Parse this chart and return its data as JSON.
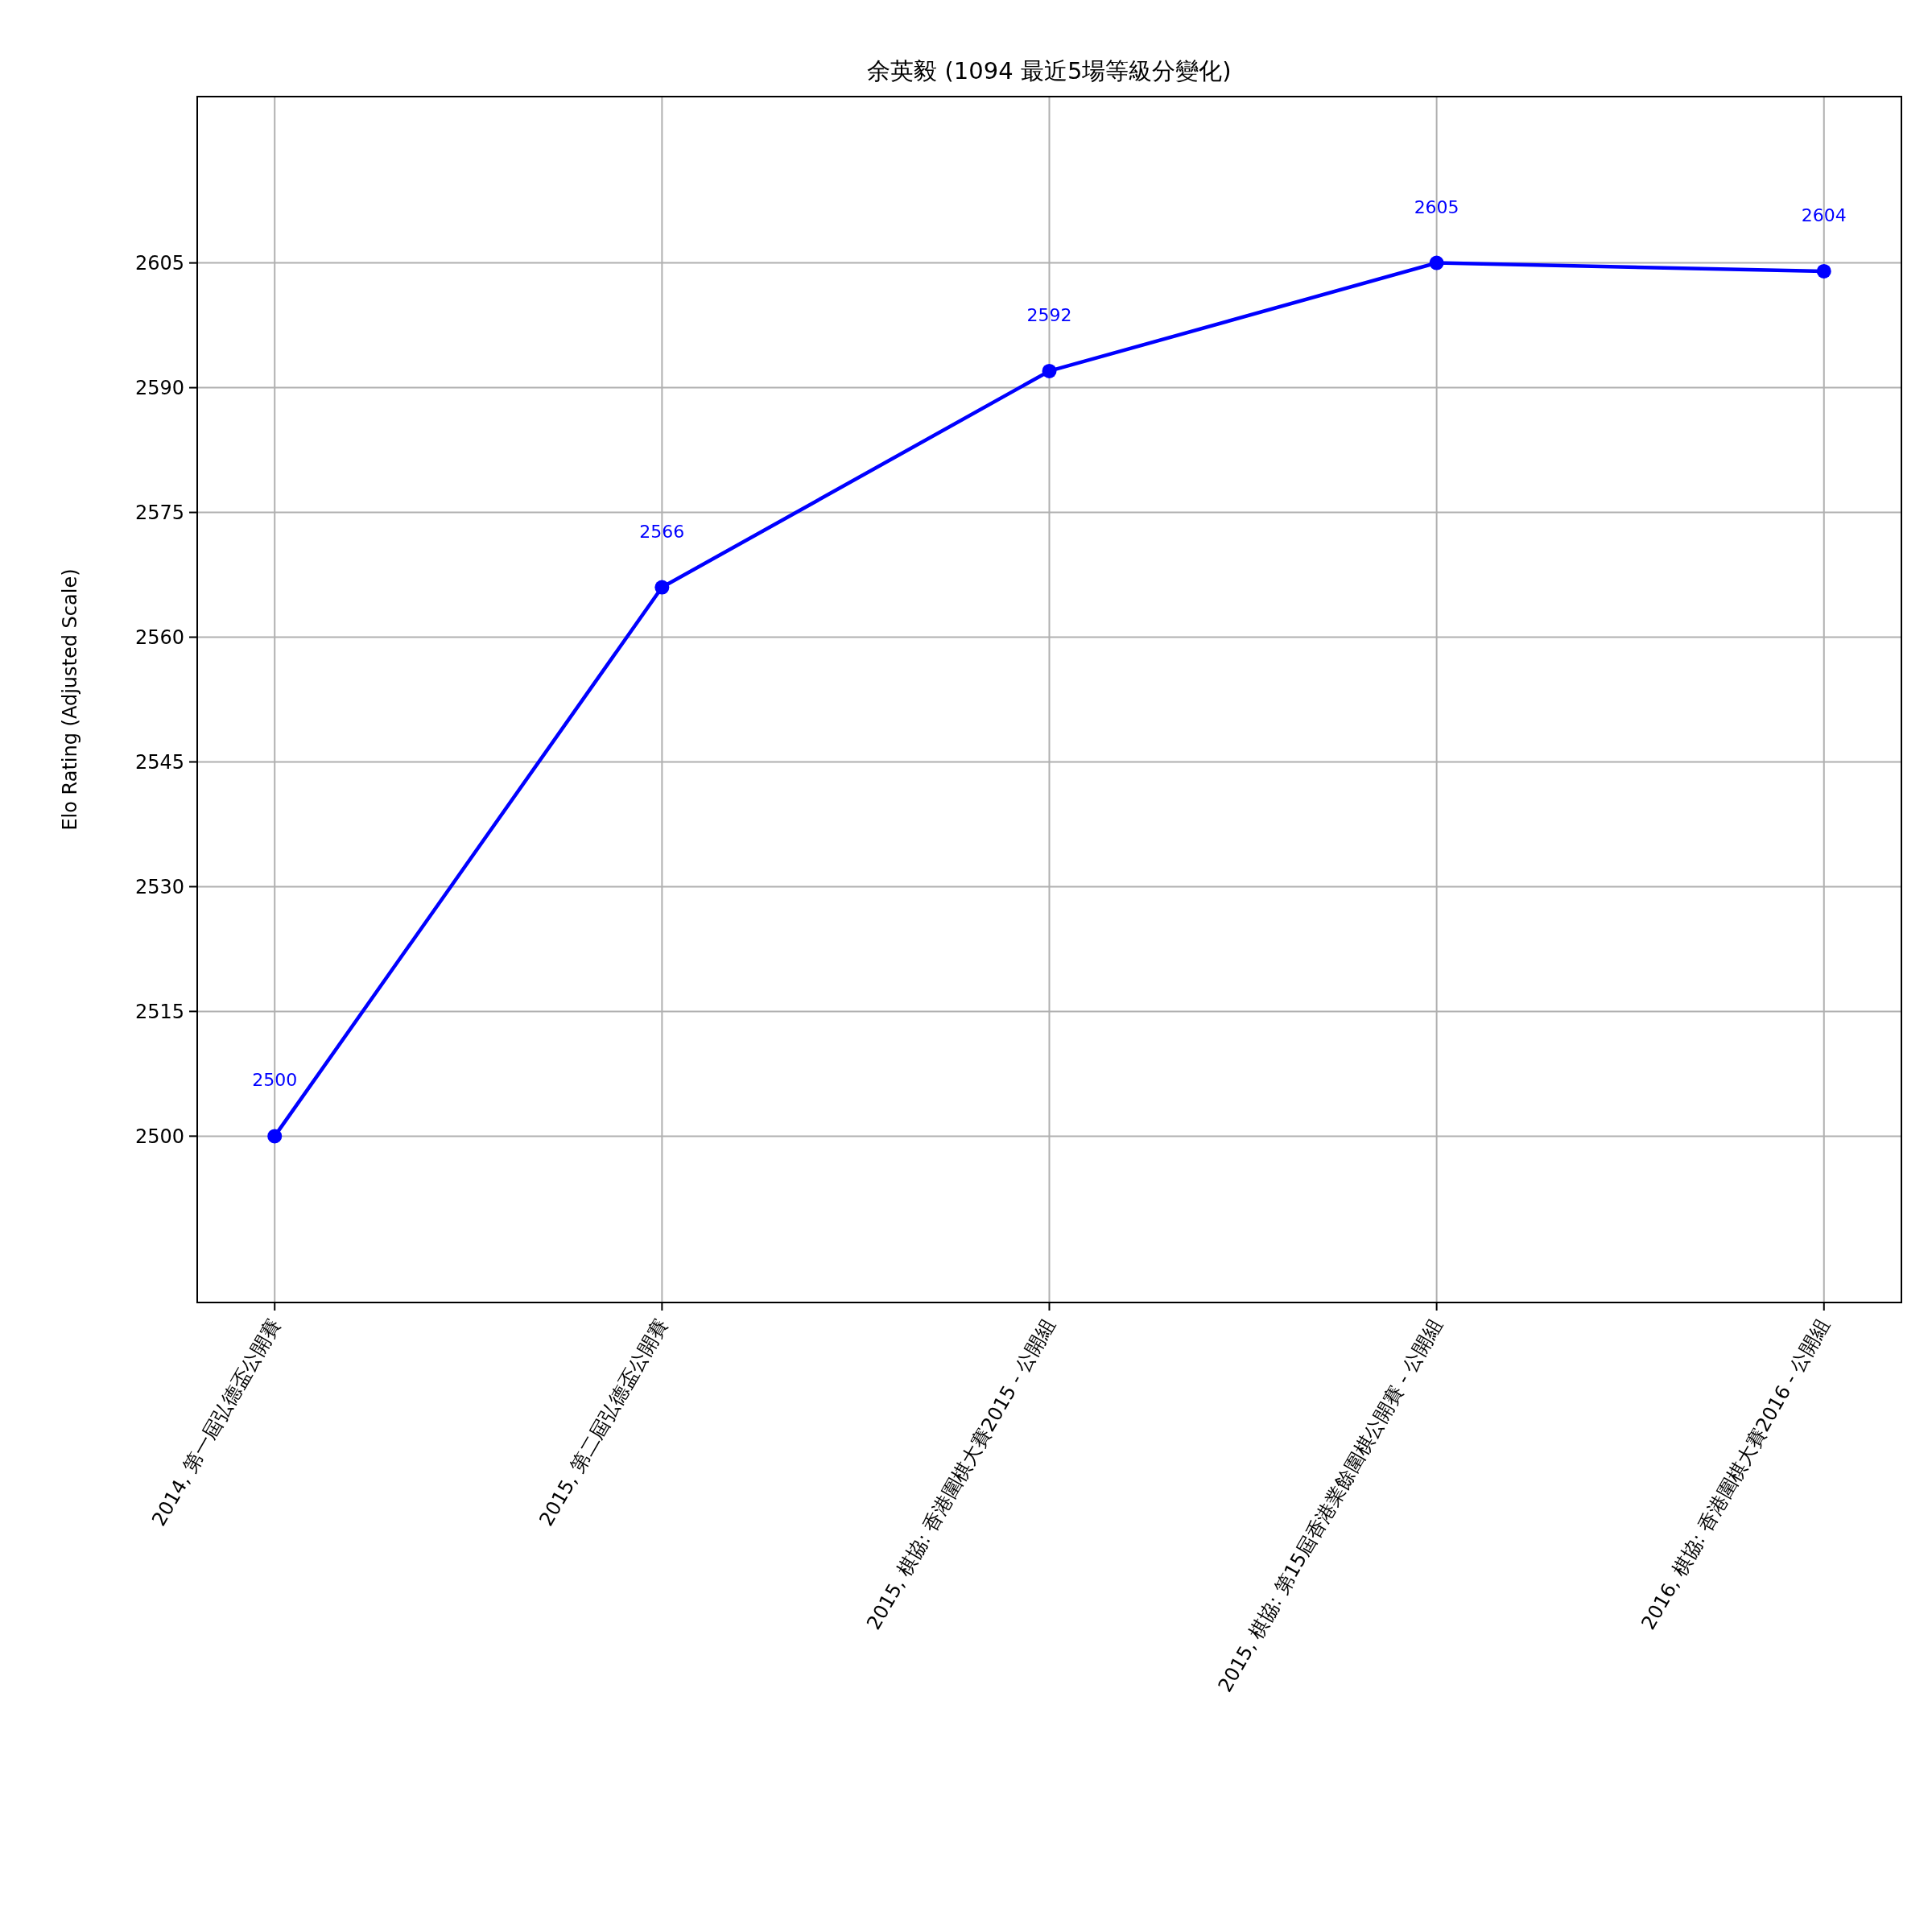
{
  "chart_data": {
    "type": "line",
    "title": "余英毅 (1094 最近5場等級分變化)",
    "ylabel": "Elo Rating (Adjusted Scale)",
    "categories": [
      "2014, 第一屆弘德盃公開賽",
      "2015, 第二屆弘德盃公開賽",
      "2015, 棋協: 香港圍棋大賽2015 - 公開組",
      "2015, 棋協: 第15屆香港業餘圍棋公開賽 - 公開組",
      "2016, 棋協: 香港圍棋大賽2016 - 公開組"
    ],
    "series": [
      {
        "color": "#0000ff",
        "values": [
          2500,
          2566,
          2592,
          2605,
          2604
        ]
      }
    ],
    "ylim": [
      2480,
      2625
    ],
    "yticks": [
      2500,
      2515,
      2530,
      2545,
      2560,
      2575,
      2590,
      2605
    ],
    "grid": true,
    "marker": "circle",
    "line_style": "solid",
    "data_labels": true
  }
}
